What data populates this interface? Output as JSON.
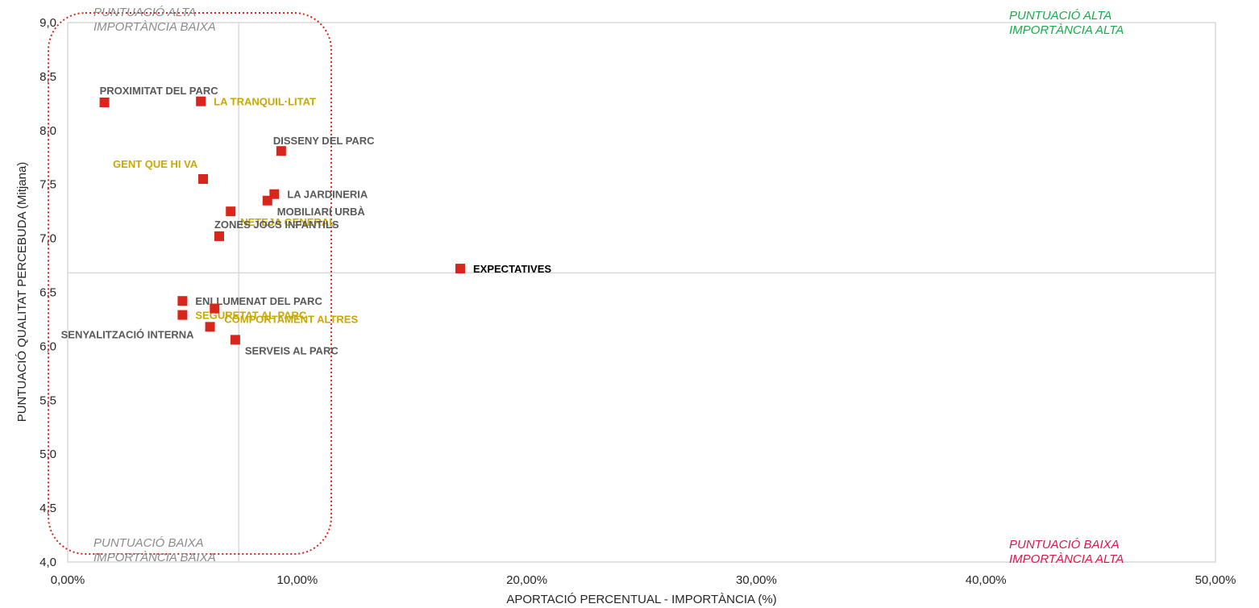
{
  "chart_data": {
    "type": "scatter",
    "title": "",
    "xlabel": "APORTACIÓ PERCENTUAL - IMPORTÀNCIA (%)",
    "ylabel": "PUNTUACIÓ QUALITAT PERCEBUDA  (Mitjana)",
    "xlim": [
      0,
      0.5
    ],
    "ylim": [
      4.0,
      9.0
    ],
    "x_ticks": [
      0,
      0.1,
      0.2,
      0.3,
      0.4,
      0.5
    ],
    "x_tick_labels": [
      "0,00%",
      "10,00%",
      "20,00%",
      "30,00%",
      "40,00%",
      "50,00%"
    ],
    "y_ticks": [
      4.0,
      4.5,
      5.0,
      5.5,
      6.0,
      6.5,
      7.0,
      7.5,
      8.0,
      8.5,
      9.0
    ],
    "y_tick_labels": [
      "4,0",
      "4,5",
      "5,0",
      "5,5",
      "6,0",
      "6,5",
      "7,0",
      "7,5",
      "8,0",
      "8,5",
      "9,0"
    ],
    "reference_lines": {
      "x": 0.0745,
      "y": 6.68
    },
    "marker_color": "#D9251C",
    "grid": false,
    "points": [
      {
        "label": "PROXIMITAT DEL PARC",
        "x": 0.016,
        "y": 8.26,
        "color": "#595959",
        "label_pos": "above-right"
      },
      {
        "label": "LA TRANQUIL·LITAT",
        "x": 0.058,
        "y": 8.27,
        "color": "#C9A800",
        "label_pos": "right"
      },
      {
        "label": "DISSENY DEL PARC",
        "x": 0.093,
        "y": 7.81,
        "color": "#595959",
        "label_pos": "above"
      },
      {
        "label": "GENT QUE HI VA",
        "x": 0.059,
        "y": 7.55,
        "color": "#C9A800",
        "label_pos": "above-left"
      },
      {
        "label": "LA JARDINERIA",
        "x": 0.09,
        "y": 7.41,
        "color": "#595959",
        "label_pos": "right"
      },
      {
        "label": "MOBILIARI URBÀ",
        "x": 0.087,
        "y": 7.35,
        "color": "#595959",
        "label_pos": "below-right"
      },
      {
        "label": "NETEJA GENERAL",
        "x": 0.071,
        "y": 7.25,
        "color": "#C9A800",
        "label_pos": "below-right"
      },
      {
        "label": "ZONES JOCS INFANTILS",
        "x": 0.066,
        "y": 7.02,
        "color": "#595959",
        "label_pos": "above-right"
      },
      {
        "label": "EXPECTATIVES",
        "x": 0.171,
        "y": 6.72,
        "color": "#000000",
        "label_pos": "right"
      },
      {
        "label": "ENLLUMENAT DEL PARC",
        "x": 0.05,
        "y": 6.42,
        "color": "#595959",
        "label_pos": "right"
      },
      {
        "label": "SEGURETAT AL PARC",
        "x": 0.05,
        "y": 6.29,
        "color": "#C9A800",
        "label_pos": "right"
      },
      {
        "label": "COMPORTAMENT ALTRES",
        "x": 0.064,
        "y": 6.35,
        "color": "#C9A800",
        "label_pos": "below-right"
      },
      {
        "label": "SENYALITZACIÓ INTERNA",
        "x": 0.062,
        "y": 6.18,
        "color": "#595959",
        "label_pos": "below-left"
      },
      {
        "label": "SERVEIS AL PARC",
        "x": 0.073,
        "y": 6.06,
        "color": "#595959",
        "label_pos": "below-right"
      }
    ],
    "quadrant_labels": [
      {
        "line1": "PUNTUACIÓ ALTA",
        "line2": "IMPORTÀNCIA BAIXA",
        "color": "#8C8C8C",
        "position": "top-left"
      },
      {
        "line1": "PUNTUACIÓ  ALTA",
        "line2": "IMPORTÀNCIA ALTA",
        "color": "#1BAA4A",
        "position": "top-right"
      },
      {
        "line1": "PUNTUACIÓ BAIXA",
        "line2": "IMPORTÀNCIA BAIXA",
        "color": "#8C8C8C",
        "position": "bottom-left"
      },
      {
        "line1": "PUNTUACIÓ BAIXA",
        "line2": "IMPORTÀNCIA ALTA",
        "color": "#D9184B",
        "position": "bottom-right"
      }
    ],
    "highlight_box_color": "#D9251C"
  }
}
